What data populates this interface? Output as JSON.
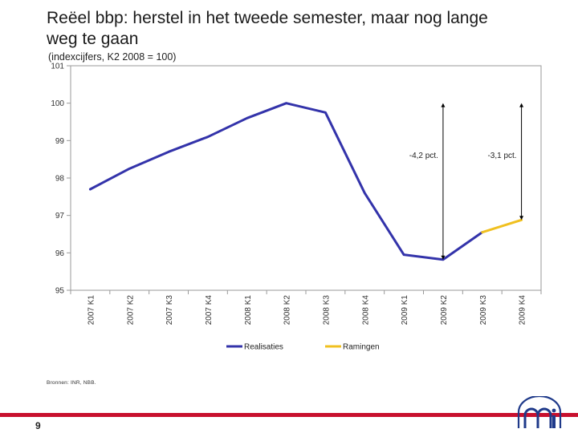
{
  "slide": {
    "title_line1": "Reëel bbp: herstel in het tweede semester, maar nog lange",
    "title_line2": "weg te gaan",
    "subtitle": "(indexcijfers, K2 2008 = 100)",
    "source": "Bronnen: INR, NBB.",
    "page_number": "9",
    "accent_color": "#c8102e",
    "logo_icon": "nbb-logo-icon"
  },
  "chart_data": {
    "type": "line",
    "categories": [
      "2007 K1",
      "2007 K2",
      "2007 K3",
      "2007 K4",
      "2008 K1",
      "2008 K2",
      "2008 K3",
      "2008 K4",
      "2009 K1",
      "2009 K2",
      "2009 K3",
      "2009 K4"
    ],
    "series": [
      {
        "name": "Realisaties",
        "color": "#3333aa",
        "values": [
          97.7,
          98.25,
          98.7,
          99.1,
          99.6,
          100.0,
          99.75,
          97.6,
          95.95,
          95.82,
          96.55,
          null
        ]
      },
      {
        "name": "Ramingen",
        "color": "#f0c020",
        "values": [
          null,
          null,
          null,
          null,
          null,
          null,
          null,
          null,
          null,
          null,
          96.55,
          96.88
        ]
      }
    ],
    "y_ticks": [
      "95",
      "96",
      "97",
      "98",
      "99",
      "100",
      "101"
    ],
    "ylim": [
      95,
      101
    ],
    "grid": false,
    "legend_position": "bottom",
    "annotations": [
      {
        "label": "-4,2 pct.",
        "category": "2009 K2",
        "from": 100.0,
        "to": 95.82
      },
      {
        "label": "-3,1 pct.",
        "category": "2009 K4",
        "from": 100.0,
        "to": 96.88
      }
    ]
  }
}
